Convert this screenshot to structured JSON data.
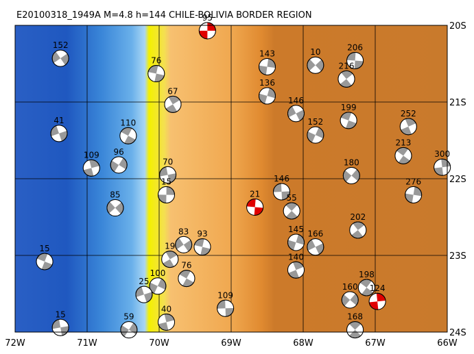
{
  "map": {
    "title": "E20100318_1949A  M=4.8  h=144  CHILE-BOLIVIA BORDER REGION",
    "lonlim": [
      -72,
      -66
    ],
    "latlim": [
      -20,
      -24
    ],
    "lon_ticks": [
      {
        "value": -72,
        "label": "72W"
      },
      {
        "value": -71,
        "label": "71W"
      },
      {
        "value": -70,
        "label": "70W"
      },
      {
        "value": -69,
        "label": "69W"
      },
      {
        "value": -68,
        "label": "68W"
      },
      {
        "value": -67,
        "label": "67W"
      },
      {
        "value": -66,
        "label": "66W"
      }
    ],
    "lat_ticks": [
      {
        "value": -20,
        "label": "20S"
      },
      {
        "value": -21,
        "label": "21S"
      },
      {
        "value": -22,
        "label": "22S"
      },
      {
        "value": -23,
        "label": "23S"
      },
      {
        "value": -24,
        "label": "24S"
      }
    ],
    "grid": true,
    "highlight_color": "#e00000",
    "events": [
      {
        "lon": -69.33,
        "lat": -20.07,
        "label": "95",
        "highlight": true
      },
      {
        "lon": -67.83,
        "lat": -20.52,
        "label": "10"
      },
      {
        "lon": -67.28,
        "lat": -20.46,
        "label": "206"
      },
      {
        "lon": -67.4,
        "lat": -20.7,
        "label": "216"
      },
      {
        "lon": -68.5,
        "lat": -20.54,
        "label": "143"
      },
      {
        "lon": -71.37,
        "lat": -20.43,
        "label": "152"
      },
      {
        "lon": -70.04,
        "lat": -20.63,
        "label": "76"
      },
      {
        "lon": -69.81,
        "lat": -21.03,
        "label": "67"
      },
      {
        "lon": -68.5,
        "lat": -20.92,
        "label": "136"
      },
      {
        "lon": -68.1,
        "lat": -21.15,
        "label": "146"
      },
      {
        "lon": -67.37,
        "lat": -21.24,
        "label": "199"
      },
      {
        "lon": -66.54,
        "lat": -21.32,
        "label": "252"
      },
      {
        "lon": -67.83,
        "lat": -21.43,
        "label": "152"
      },
      {
        "lon": -71.39,
        "lat": -21.41,
        "label": "41"
      },
      {
        "lon": -70.43,
        "lat": -21.44,
        "label": "110"
      },
      {
        "lon": -70.94,
        "lat": -21.86,
        "label": "109"
      },
      {
        "lon": -70.56,
        "lat": -21.82,
        "label": "96"
      },
      {
        "lon": -69.88,
        "lat": -21.95,
        "label": "70"
      },
      {
        "lon": -66.61,
        "lat": -21.7,
        "label": "213"
      },
      {
        "lon": -66.07,
        "lat": -21.85,
        "label": "300"
      },
      {
        "lon": -67.33,
        "lat": -21.96,
        "label": "180"
      },
      {
        "lon": -68.3,
        "lat": -22.17,
        "label": "146"
      },
      {
        "lon": -68.16,
        "lat": -22.42,
        "label": "55"
      },
      {
        "lon": -69.9,
        "lat": -22.21,
        "label": "15"
      },
      {
        "lon": -70.61,
        "lat": -22.38,
        "label": "85"
      },
      {
        "lon": -68.67,
        "lat": -22.37,
        "label": "21",
        "highlight": true
      },
      {
        "lon": -67.24,
        "lat": -22.67,
        "label": "202"
      },
      {
        "lon": -66.47,
        "lat": -22.21,
        "label": "276"
      },
      {
        "lon": -69.66,
        "lat": -22.86,
        "label": "83"
      },
      {
        "lon": -69.4,
        "lat": -22.89,
        "label": "93"
      },
      {
        "lon": -69.85,
        "lat": -23.05,
        "label": "19"
      },
      {
        "lon": -68.1,
        "lat": -22.83,
        "label": "145"
      },
      {
        "lon": -67.83,
        "lat": -22.89,
        "label": "166"
      },
      {
        "lon": -71.59,
        "lat": -23.08,
        "label": "15"
      },
      {
        "lon": -68.1,
        "lat": -23.19,
        "label": "140"
      },
      {
        "lon": -70.02,
        "lat": -23.4,
        "label": "100"
      },
      {
        "lon": -70.21,
        "lat": -23.51,
        "label": "25"
      },
      {
        "lon": -69.62,
        "lat": -23.3,
        "label": "76"
      },
      {
        "lon": -69.9,
        "lat": -23.87,
        "label": "40"
      },
      {
        "lon": -70.42,
        "lat": -23.97,
        "label": "59"
      },
      {
        "lon": -71.37,
        "lat": -23.94,
        "label": "15"
      },
      {
        "lon": -67.12,
        "lat": -23.42,
        "label": "198"
      },
      {
        "lon": -66.97,
        "lat": -23.6,
        "label": "124",
        "highlight": true
      },
      {
        "lon": -67.35,
        "lat": -23.58,
        "label": "160"
      },
      {
        "lon": -69.08,
        "lat": -23.69,
        "label": "109"
      },
      {
        "lon": -67.28,
        "lat": -23.97,
        "label": "168"
      }
    ]
  }
}
